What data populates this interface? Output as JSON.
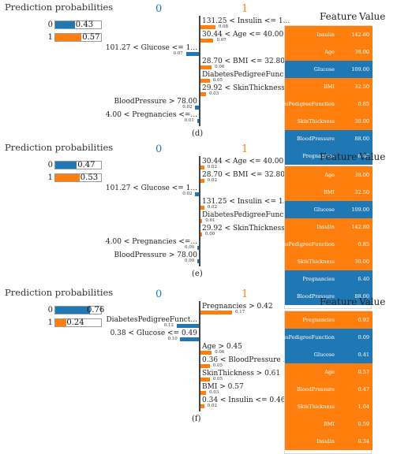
{
  "colors": {
    "class0": "#1f77b4",
    "class1": "#ff7f0e"
  },
  "pred_title": "Prediction probabilities",
  "feature_header": "Feature",
  "value_header": "Value",
  "panels": [
    {
      "caption": "(d)",
      "class0_label": "0",
      "class1_label": "1",
      "probs": [
        {
          "label": "0",
          "value": "0.43",
          "fraction": 0.43,
          "color": "#1f77b4"
        },
        {
          "label": "1",
          "value": "0.57",
          "fraction": 0.57,
          "color": "#ff7f0e"
        }
      ],
      "features": [
        {
          "text": "131.25 < Insulin <= 1...",
          "weight": "0.08",
          "w": 0.08,
          "side": "right"
        },
        {
          "text": "30.44 < Age <= 40.00",
          "weight": "0.07",
          "w": 0.07,
          "side": "right"
        },
        {
          "text": "101.27 < Glucose <= 1...",
          "weight": "0.07",
          "w": 0.07,
          "side": "left"
        },
        {
          "text": "28.70 < BMI <= 32.80",
          "weight": "0.06",
          "w": 0.06,
          "side": "right"
        },
        {
          "text": "DiabetesPedigreeFunc...",
          "weight": "0.05",
          "w": 0.05,
          "side": "right"
        },
        {
          "text": "29.92 < SkinThickness...",
          "weight": "0.03",
          "w": 0.03,
          "side": "right"
        },
        {
          "text": "BloodPressure > 78.00",
          "weight": "0.02",
          "w": 0.02,
          "side": "left"
        },
        {
          "text": "4.00 < Pregnancies <=...",
          "weight": "0.01",
          "w": 0.01,
          "side": "left"
        }
      ],
      "table": [
        {
          "name": "Insulin",
          "value": "142.80",
          "color": "#ff7f0e"
        },
        {
          "name": "Age",
          "value": "38.00",
          "color": "#ff7f0e"
        },
        {
          "name": "Glucose",
          "value": "109.00",
          "color": "#1f77b4"
        },
        {
          "name": "BMI",
          "value": "32.50",
          "color": "#ff7f0e"
        },
        {
          "name": "DiabetesPedigreeFunction",
          "value": "0.85",
          "color": "#ff7f0e"
        },
        {
          "name": "SkinThickness",
          "value": "30.00",
          "color": "#ff7f0e"
        },
        {
          "name": "BloodPressure",
          "value": "88.00",
          "color": "#1f77b4"
        },
        {
          "name": "Pregnancies",
          "value": "6.40",
          "color": "#1f77b4"
        }
      ]
    },
    {
      "caption": "(e)",
      "class0_label": "0",
      "class1_label": "1",
      "probs": [
        {
          "label": "0",
          "value": "0.47",
          "fraction": 0.47,
          "color": "#1f77b4"
        },
        {
          "label": "1",
          "value": "0.53",
          "fraction": 0.53,
          "color": "#ff7f0e"
        }
      ],
      "features": [
        {
          "text": "30.44 < Age <= 40.00",
          "weight": "0.02",
          "w": 0.02,
          "side": "right"
        },
        {
          "text": "28.70 < BMI <= 32.80",
          "weight": "0.02",
          "w": 0.02,
          "side": "right"
        },
        {
          "text": "101.27 < Glucose <= 1...",
          "weight": "0.02",
          "w": 0.02,
          "side": "left"
        },
        {
          "text": "131.25 < Insulin <= 1...",
          "weight": "0.02",
          "w": 0.02,
          "side": "right"
        },
        {
          "text": "DiabetesPedigreeFunc...",
          "weight": "0.01",
          "w": 0.01,
          "side": "right"
        },
        {
          "text": "29.92 < SkinThickness...",
          "weight": "0.00",
          "w": 0.004,
          "side": "right"
        },
        {
          "text": "4.00 < Pregnancies <=...",
          "weight": "0.00",
          "w": 0.004,
          "side": "left"
        },
        {
          "text": "BloodPressure > 78.00",
          "weight": "0.00",
          "w": 0.004,
          "side": "left"
        }
      ],
      "table": [
        {
          "name": "Age",
          "value": "38.00",
          "color": "#ff7f0e"
        },
        {
          "name": "BMI",
          "value": "32.50",
          "color": "#ff7f0e"
        },
        {
          "name": "Glucose",
          "value": "109.00",
          "color": "#1f77b4"
        },
        {
          "name": "Insulin",
          "value": "142.80",
          "color": "#ff7f0e"
        },
        {
          "name": "DiabetesPedigreeFunction",
          "value": "0.85",
          "color": "#ff7f0e"
        },
        {
          "name": "SkinThickness",
          "value": "30.00",
          "color": "#ff7f0e"
        },
        {
          "name": "Pregnancies",
          "value": "6.40",
          "color": "#1f77b4"
        },
        {
          "name": "BloodPressure",
          "value": "88.00",
          "color": "#1f77b4"
        }
      ]
    },
    {
      "caption": "(f)",
      "class0_label": "0",
      "class1_label": "1",
      "probs": [
        {
          "label": "0",
          "value": "0.76",
          "fraction": 0.76,
          "color": "#1f77b4"
        },
        {
          "label": "1",
          "value": "0.24",
          "fraction": 0.24,
          "color": "#ff7f0e"
        }
      ],
      "features": [
        {
          "text": "Pregnancies > 0.42",
          "weight": "0.17",
          "w": 0.17,
          "side": "right"
        },
        {
          "text": "DiabetesPedigreeFunct...",
          "weight": "0.12",
          "w": 0.12,
          "side": "left"
        },
        {
          "text": "0.38 < Glucose <= 0.49",
          "weight": "0.10",
          "w": 0.1,
          "side": "left"
        },
        {
          "text": "Age > 0.45",
          "weight": "0.06",
          "w": 0.06,
          "side": "right"
        },
        {
          "text": "0.36 < BloodPressure ...",
          "weight": "0.05",
          "w": 0.05,
          "side": "right"
        },
        {
          "text": "SkinThickness > 0.61",
          "weight": "0.05",
          "w": 0.05,
          "side": "right"
        },
        {
          "text": "BMI > 0.57",
          "weight": "0.03",
          "w": 0.03,
          "side": "right"
        },
        {
          "text": "0.34 < Insulin <= 0.46",
          "weight": "0.02",
          "w": 0.02,
          "side": "right"
        }
      ],
      "table": [
        {
          "name": "Pregnancies",
          "value": "0.92",
          "color": "#ff7f0e"
        },
        {
          "name": "DiabetesPedigreeFunction",
          "value": "0.09",
          "color": "#1f77b4"
        },
        {
          "name": "Glucose",
          "value": "0.41",
          "color": "#1f77b4"
        },
        {
          "name": "Age",
          "value": "0.57",
          "color": "#ff7f0e"
        },
        {
          "name": "BloodPressure",
          "value": "0.47",
          "color": "#ff7f0e"
        },
        {
          "name": "SkinThickness",
          "value": "1.04",
          "color": "#ff7f0e"
        },
        {
          "name": "BMI",
          "value": "0.59",
          "color": "#ff7f0e"
        },
        {
          "name": "Insulin",
          "value": "0.34",
          "color": "#ff7f0e"
        }
      ]
    }
  ]
}
